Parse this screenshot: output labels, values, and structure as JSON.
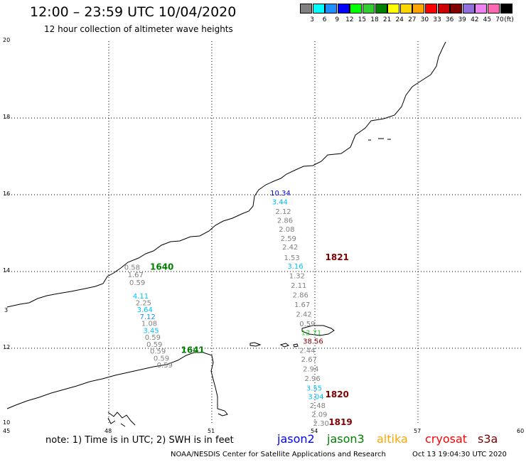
{
  "header": {
    "title": "12:00 – 23:59 UTC 10/04/2020",
    "subtitle": "12 hour collection of altimeter wave heights"
  },
  "scale": {
    "unit": "(ft)",
    "bins": [
      {
        "color": "#808080",
        "label": "3"
      },
      {
        "color": "#00ffff",
        "label": "6"
      },
      {
        "color": "#1e90ff",
        "label": "9"
      },
      {
        "color": "#0000ff",
        "label": "12"
      },
      {
        "color": "#00ff00",
        "label": "15"
      },
      {
        "color": "#32cd32",
        "label": "18"
      },
      {
        "color": "#008000",
        "label": "21"
      },
      {
        "color": "#ffff00",
        "label": "24"
      },
      {
        "color": "#ffd700",
        "label": "27"
      },
      {
        "color": "#ffa500",
        "label": "30"
      },
      {
        "color": "#ff0000",
        "label": "33"
      },
      {
        "color": "#cc0000",
        "label": "36"
      },
      {
        "color": "#800000",
        "label": "39"
      },
      {
        "color": "#9370db",
        "label": "42"
      },
      {
        "color": "#ee82ee",
        "label": "45"
      },
      {
        "color": "#ff69b4",
        "label": "70"
      },
      {
        "color": "#000000",
        "label": ""
      }
    ]
  },
  "axes": {
    "lon_labels": [
      "45",
      "48",
      "51",
      "54",
      "57",
      "60"
    ],
    "lat_labels": [
      "20",
      "18",
      "16",
      "14",
      "12",
      "10"
    ],
    "lat_label_13": "3"
  },
  "tracks": [
    {
      "name": "1640",
      "color": "#008000",
      "label_lon": 49.2,
      "label_lat": 14.05,
      "points": [
        {
          "v": "0.58",
          "lon": 48.45,
          "lat": 14.05,
          "c": "#808080"
        },
        {
          "v": "1.67",
          "lon": 48.55,
          "lat": 13.85,
          "c": "#808080"
        },
        {
          "v": "0.59",
          "lon": 48.6,
          "lat": 13.65,
          "c": "#808080"
        }
      ]
    },
    {
      "name": "1641",
      "color": "#008000",
      "label_lon": 50.1,
      "label_lat": 11.88,
      "points": [
        {
          "v": "4.11",
          "lon": 48.7,
          "lat": 13.3,
          "c": "#00bfff"
        },
        {
          "v": "2.25",
          "lon": 48.78,
          "lat": 13.12,
          "c": "#808080"
        },
        {
          "v": "3.64",
          "lon": 48.82,
          "lat": 12.94,
          "c": "#00bfff"
        },
        {
          "v": "7.12",
          "lon": 48.9,
          "lat": 12.76,
          "c": "#1e90ff"
        },
        {
          "v": "1.08",
          "lon": 48.95,
          "lat": 12.58,
          "c": "#808080"
        },
        {
          "v": "3.45",
          "lon": 49.0,
          "lat": 12.4,
          "c": "#00bfff"
        },
        {
          "v": "0.59",
          "lon": 49.05,
          "lat": 12.22,
          "c": "#808080"
        },
        {
          "v": "0.59",
          "lon": 49.1,
          "lat": 12.04,
          "c": "#808080"
        },
        {
          "v": "0.59",
          "lon": 49.2,
          "lat": 11.86,
          "c": "#808080"
        },
        {
          "v": "0.59",
          "lon": 49.3,
          "lat": 11.68,
          "c": "#808080"
        },
        {
          "v": "0.59",
          "lon": 49.4,
          "lat": 11.5,
          "c": "#808080"
        }
      ]
    },
    {
      "name": "1821",
      "color": "#800000",
      "label_lon": 54.3,
      "label_lat": 14.3,
      "points": [
        {
          "v": "10.34",
          "lon": 52.7,
          "lat": 15.98,
          "c": "#0000ff"
        },
        {
          "v": "3.44",
          "lon": 52.75,
          "lat": 15.75,
          "c": "#00bfff"
        },
        {
          "v": "2.12",
          "lon": 52.85,
          "lat": 15.5,
          "c": "#808080"
        },
        {
          "v": "2.86",
          "lon": 52.9,
          "lat": 15.27,
          "c": "#808080"
        },
        {
          "v": "2.08",
          "lon": 52.95,
          "lat": 15.04,
          "c": "#808080"
        },
        {
          "v": "2.59",
          "lon": 53.0,
          "lat": 14.8,
          "c": "#808080"
        },
        {
          "v": "2.42",
          "lon": 53.05,
          "lat": 14.57,
          "c": "#808080"
        },
        {
          "v": "1.53",
          "lon": 53.1,
          "lat": 14.3,
          "c": "#808080"
        },
        {
          "v": "3.16",
          "lon": 53.2,
          "lat": 14.07,
          "c": "#00bfff"
        },
        {
          "v": "1.32",
          "lon": 53.25,
          "lat": 13.82,
          "c": "#808080"
        },
        {
          "v": "2.11",
          "lon": 53.3,
          "lat": 13.57,
          "c": "#808080"
        },
        {
          "v": "2.86",
          "lon": 53.35,
          "lat": 13.32,
          "c": "#808080"
        },
        {
          "v": "1.67",
          "lon": 53.4,
          "lat": 13.07,
          "c": "#808080"
        },
        {
          "v": "2.42",
          "lon": 53.45,
          "lat": 12.82,
          "c": "#808080"
        },
        {
          "v": "0.59",
          "lon": 53.55,
          "lat": 12.57,
          "c": "#808080"
        },
        {
          "v": "12.71",
          "lon": 53.6,
          "lat": 12.34,
          "c": "#32cd32"
        },
        {
          "v": "38.56",
          "lon": 53.65,
          "lat": 12.12,
          "c": "#800000"
        }
      ]
    },
    {
      "name": "1820",
      "color": "#800000",
      "label_lon": 54.3,
      "label_lat": 10.72,
      "points": [
        {
          "v": "2.44",
          "lon": 53.55,
          "lat": 11.88,
          "c": "#808080"
        },
        {
          "v": "2.67",
          "lon": 53.6,
          "lat": 11.65,
          "c": "#808080"
        },
        {
          "v": "2.94",
          "lon": 53.65,
          "lat": 11.4,
          "c": "#808080"
        },
        {
          "v": "2.96",
          "lon": 53.7,
          "lat": 11.15,
          "c": "#808080"
        },
        {
          "v": "3.55",
          "lon": 53.75,
          "lat": 10.9,
          "c": "#00bfff"
        },
        {
          "v": "3.04",
          "lon": 53.8,
          "lat": 10.68,
          "c": "#00bfff"
        }
      ]
    },
    {
      "name": "1819",
      "color": "#800000",
      "label_lon": 54.4,
      "label_lat": 10.0,
      "points": [
        {
          "v": "2.48",
          "lon": 53.85,
          "lat": 10.44,
          "c": "#808080"
        },
        {
          "v": "2.09",
          "lon": 53.9,
          "lat": 10.21,
          "c": "#808080"
        },
        {
          "v": "2.30",
          "lon": 53.95,
          "lat": 9.98,
          "c": "#808080"
        }
      ]
    }
  ],
  "note": "note: 1) Time is in UTC; 2) SWH is in feet",
  "legend": [
    {
      "label": "jason2",
      "color": "#0000ff"
    },
    {
      "label": "jason3",
      "color": "#008000"
    },
    {
      "label": "altika",
      "color": "#ffa500"
    },
    {
      "label": "cryosat",
      "color": "#ff0000"
    },
    {
      "label": "s3a",
      "color": "#800000"
    }
  ],
  "footer": "NOAA/NESDIS Center for Satellite Applications and Research",
  "footer_time": "Oct 13 19:04:30 UTC 2020",
  "colors": {
    "coast": "#000000",
    "grid": "#000000"
  }
}
